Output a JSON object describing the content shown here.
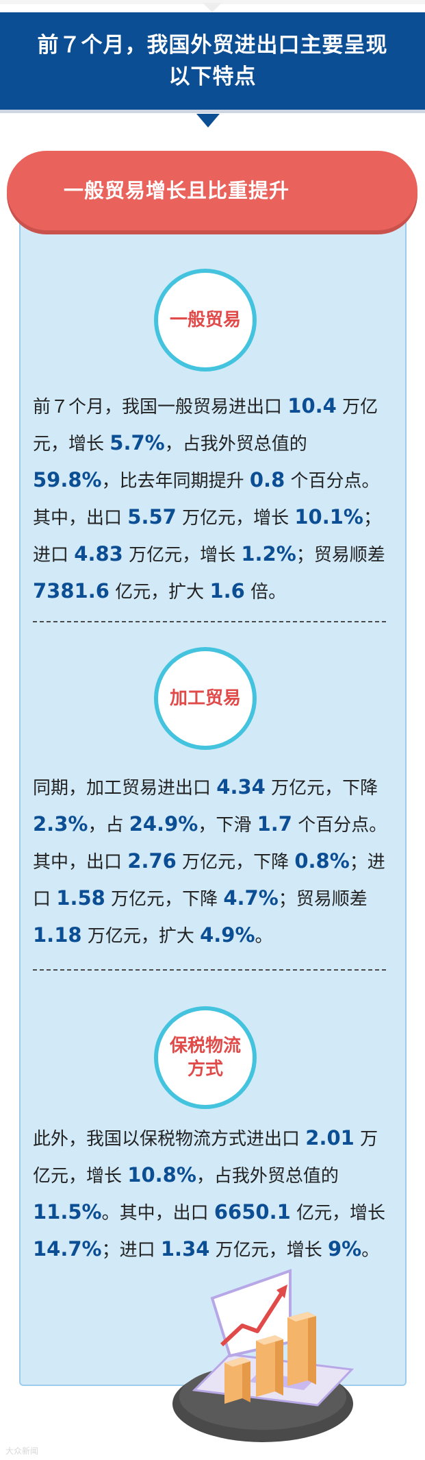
{
  "header": {
    "title": "前７个月，我国外贸进出口主要呈现以下特点"
  },
  "banner": {
    "title": "一般贸易增长且比重提升"
  },
  "sections": [
    {
      "circle_label": "一般贸易",
      "text": [
        [
          "前７个月，我国一般贸易进出口 ",
          "10.4",
          " 万亿元，增长 ",
          "5.7%",
          "，占我外贸总值的 ",
          "59.8%",
          "，比去年同期提升 ",
          "0.8",
          " 个百分点。其中，出口 ",
          "5.57",
          " 万亿元，增长 ",
          "10.1%",
          "；进口 ",
          "4.83",
          " 万亿元，增长 ",
          "1.2%",
          "；贸易顺差 ",
          "7381.6",
          " 亿元，扩大 ",
          "1.6",
          " 倍。"
        ]
      ]
    },
    {
      "circle_label": "加工贸易",
      "text": [
        [
          "同期，加工贸易进出口 ",
          "4.34",
          " 万亿元，下降 ",
          "2.3%",
          "，占 ",
          "24.9%",
          "，下滑 ",
          "1.7",
          " 个百分点。其中，出口 ",
          "2.76",
          " 万亿元，下降 ",
          "0.8%",
          "；进口 ",
          "1.58",
          " 万亿元，下降 ",
          "4.7%",
          "；贸易顺差 ",
          "1.18",
          " 万亿元，扩大 ",
          "4.9%",
          "。"
        ]
      ]
    },
    {
      "circle_label": "保税物流方式",
      "text": [
        [
          "此外，我国以保税物流方式进出口 ",
          "2.01",
          " 万亿元，增长 ",
          "10.8%",
          "，占我外贸总值的 ",
          "11.5%",
          "。其中，出口 ",
          "6650.1",
          " 亿元，增长 ",
          "14.7%",
          "；进口 ",
          "1.34",
          " 万亿元，增长 ",
          "9%",
          "。"
        ]
      ]
    }
  ],
  "watermark": "大众新闻"
}
